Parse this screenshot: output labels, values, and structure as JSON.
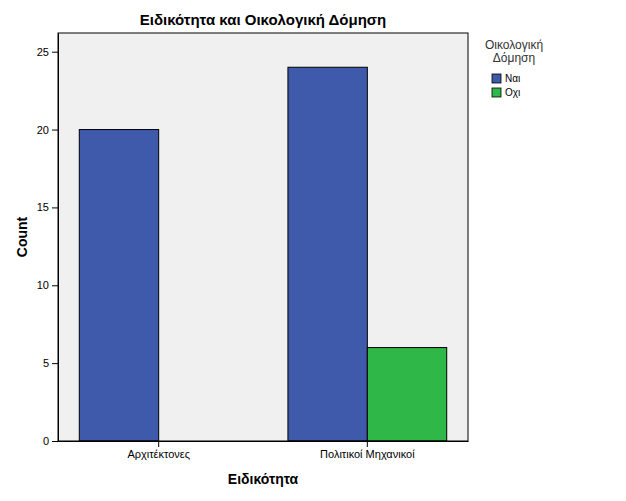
{
  "chart_data": {
    "type": "bar",
    "title": "Ειδικότητα και Οικολογική Δόμηση",
    "x_label": "Ειδικότητα",
    "y_label": "Count",
    "legend_title": "Οικολογική Δόμηση",
    "categories": [
      "Αρχιτέκτονες",
      "Πολιτικοί Μηχανικοί"
    ],
    "series": [
      {
        "name": "Ναι",
        "color": "#3f59ab",
        "values": [
          20,
          24
        ]
      },
      {
        "name": "Οχι",
        "color": "#2fb748",
        "values": [
          0,
          6
        ]
      }
    ],
    "ylim": [
      0,
      26.2
    ],
    "yticks": [
      0,
      5,
      10,
      15,
      20,
      25
    ],
    "grid": false,
    "legend": "right"
  }
}
